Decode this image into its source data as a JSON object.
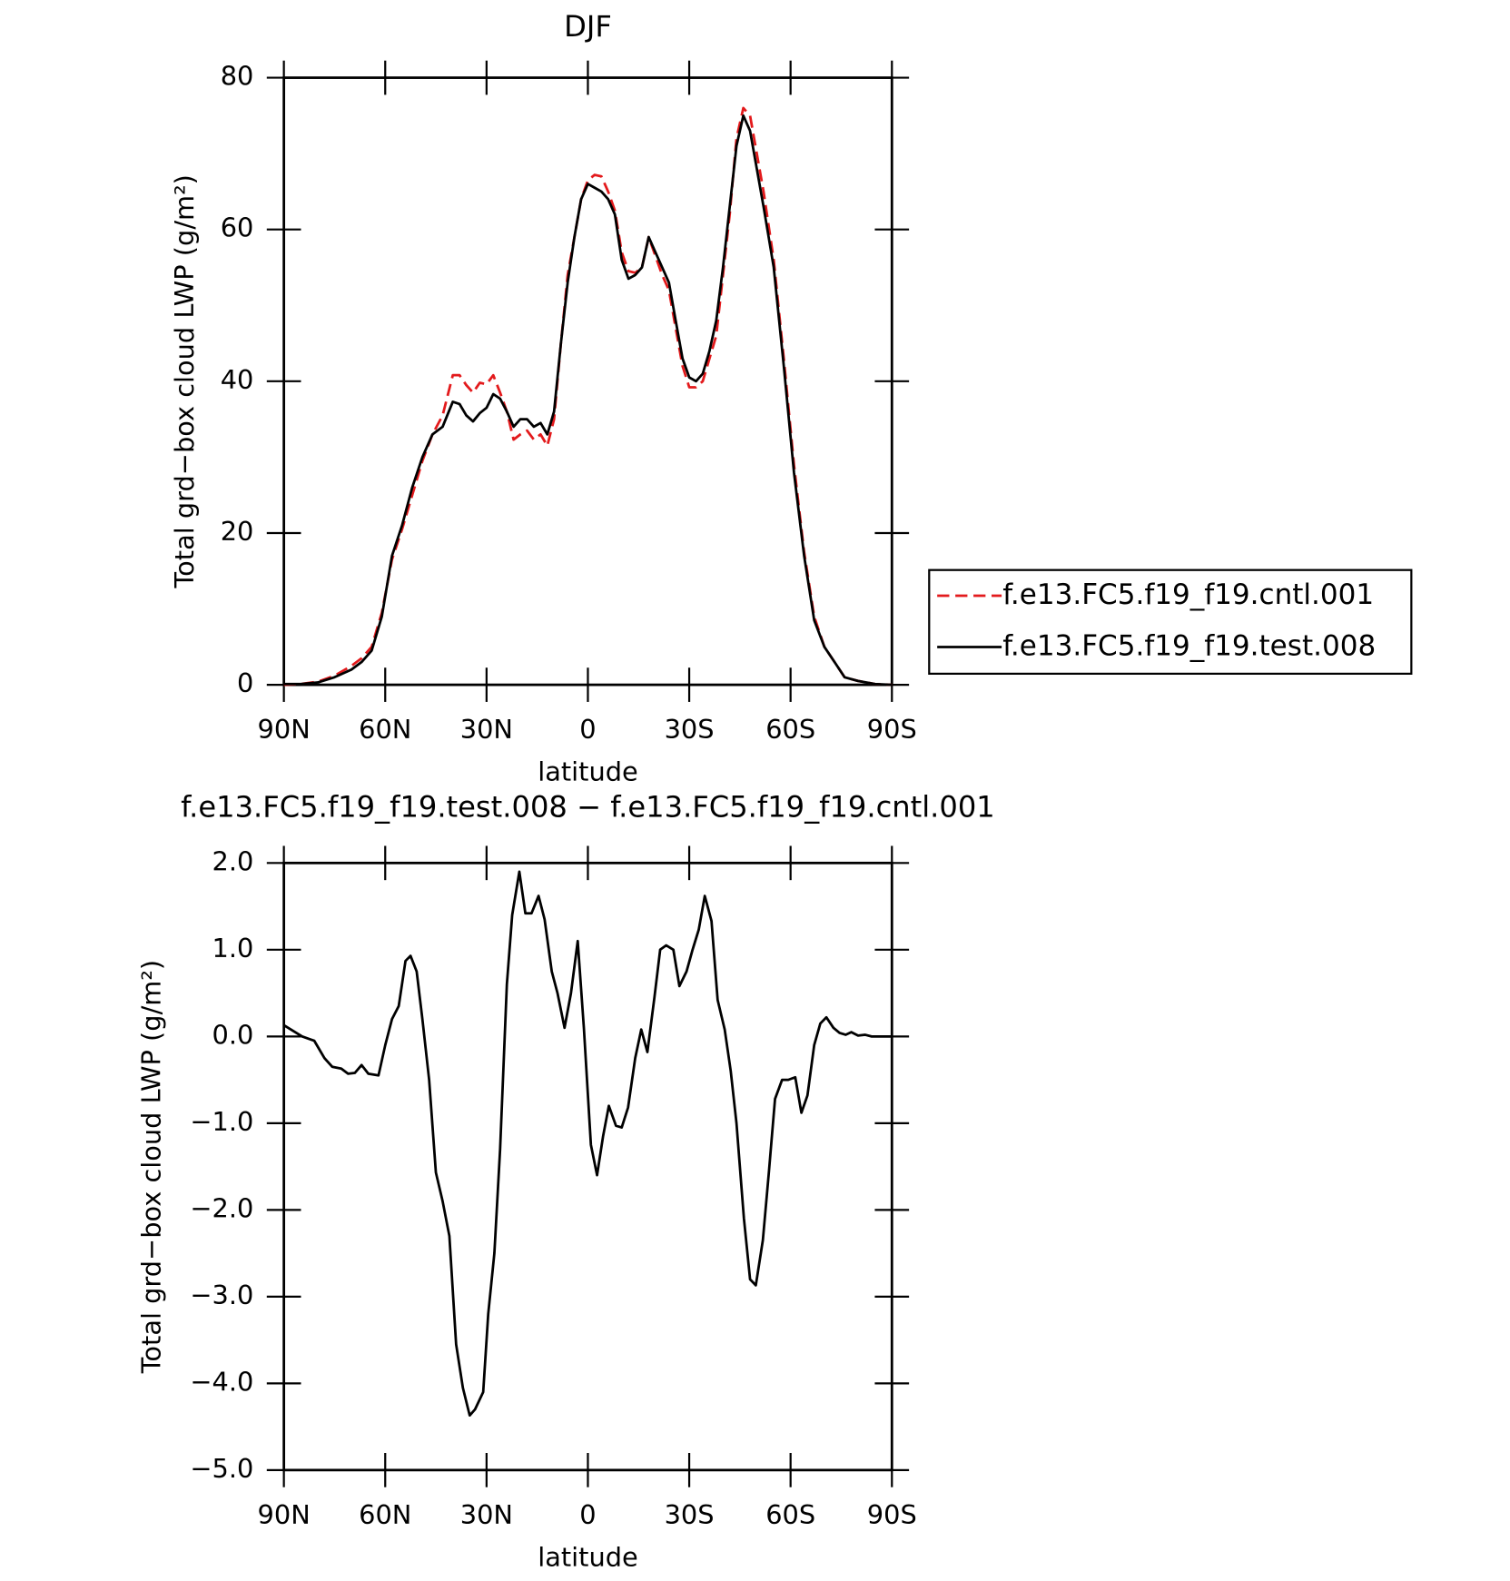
{
  "chart_data": [
    {
      "type": "line",
      "title": "DJF",
      "xlabel": "latitude",
      "ylabel": "Total grd−box cloud LWP (g/m²)",
      "legend": "right",
      "x": [
        90,
        85,
        80,
        75,
        70,
        67,
        64,
        61,
        58,
        55,
        52,
        49,
        46,
        43,
        40,
        38,
        36,
        34,
        32,
        30,
        28,
        26,
        24,
        22,
        20,
        18,
        16,
        14,
        12,
        10,
        8,
        6,
        4,
        2,
        0,
        -2,
        -4,
        -6,
        -8,
        -10,
        -12,
        -14,
        -16,
        -18,
        -20,
        -22,
        -24,
        -26,
        -28,
        -30,
        -32,
        -34,
        -36,
        -38,
        -40,
        -42,
        -44,
        -46,
        -48,
        -50,
        -52,
        -55,
        -58,
        -61,
        -64,
        -67,
        -70,
        -73,
        -76,
        -80,
        -85,
        -90
      ],
      "series": [
        {
          "name": "f.e13.FC5.f19_f19.cntl.001",
          "color": "#e31a1c",
          "dashed": true,
          "values": [
            0,
            0.1,
            0.4,
            1.2,
            2.5,
            3.5,
            5,
            9.5,
            16.5,
            20.5,
            25,
            29.5,
            33,
            35.5,
            40.8,
            40.8,
            39.5,
            38.5,
            39.8,
            39.6,
            40.8,
            38.5,
            36,
            32.3,
            33,
            33.5,
            32.3,
            33,
            31.5,
            35,
            45,
            54,
            59,
            64,
            66.5,
            67.2,
            67,
            65,
            62.5,
            57,
            54.5,
            54.3,
            55,
            59,
            56.5,
            54,
            52,
            47,
            42,
            39.2,
            39.2,
            40,
            43,
            46,
            54,
            62,
            72,
            76,
            75,
            70,
            65,
            56,
            43,
            29,
            17.5,
            9,
            5,
            3,
            1,
            0.5,
            0.1,
            0
          ]
        },
        {
          "name": "f.e13.FC5.f19_f19.test.008",
          "color": "#000000",
          "dashed": false,
          "values": [
            0.1,
            0.1,
            0.3,
            1,
            2,
            3,
            4.5,
            9,
            17,
            21,
            26,
            30,
            33,
            34,
            37.3,
            37,
            35.5,
            34.7,
            35.8,
            36.5,
            38.3,
            37.7,
            36,
            34,
            35,
            35,
            34,
            34.5,
            33,
            36,
            45,
            53,
            59,
            64,
            66,
            65.5,
            65,
            64,
            62,
            56,
            53.5,
            54,
            55,
            59,
            57,
            55,
            53,
            48,
            43,
            40.5,
            40,
            41,
            44,
            48,
            55,
            63,
            71,
            75,
            73,
            68,
            63,
            55,
            42,
            28,
            17,
            8.5,
            5,
            3,
            1,
            0.5,
            0.1,
            0
          ]
        }
      ],
      "xlim": [
        90,
        -90
      ],
      "xticks": [
        {
          "value": 90,
          "label": "90N"
        },
        {
          "value": 60,
          "label": "60N"
        },
        {
          "value": 30,
          "label": "30N"
        },
        0,
        {
          "value": -30,
          "label": "30S"
        },
        {
          "value": -60,
          "label": "60S"
        },
        {
          "value": -90,
          "label": "90S"
        }
      ],
      "ylim": [
        0,
        80
      ],
      "yticks": [
        0,
        20,
        40,
        60,
        80
      ]
    },
    {
      "type": "line",
      "title": "f.e13.FC5.f19_f19.test.008 − f.e13.FC5.f19_f19.cntl.001",
      "xlabel": "latitude",
      "ylabel": "Total grd−box cloud LWP (g/m²)",
      "x": [
        90,
        84.6,
        81,
        78,
        75.7,
        73,
        71,
        69,
        67,
        65,
        62,
        60,
        58,
        56,
        54,
        52.5,
        50.7,
        49,
        47,
        45,
        43,
        41,
        39,
        37,
        35,
        33.4,
        31,
        29.5,
        27.7,
        26,
        24,
        22.4,
        20.3,
        18.5,
        16.7,
        14.6,
        12.8,
        10.7,
        9,
        6.9,
        5,
        3,
        1.2,
        -0.9,
        -2.7,
        -4.5,
        -6.2,
        -8.3,
        -10,
        -11.9,
        -14,
        -15.8,
        -17.6,
        -19.7,
        -21.4,
        -23.2,
        -25.3,
        -27.1,
        -29.2,
        -31,
        -32.8,
        -34.6,
        -36.6,
        -38.4,
        -40.5,
        -42.3,
        -44,
        -46.2,
        -48,
        -49.7,
        -51.8,
        -53.6,
        -55.4,
        -57.5,
        -59.3,
        -61.4,
        -63.2,
        -65,
        -67,
        -68.8,
        -70.6,
        -72.7,
        -74.5,
        -76.3,
        -78,
        -80,
        -82,
        -84,
        -90
      ],
      "values": [
        0.13,
        0.0,
        -0.05,
        -0.25,
        -0.35,
        -0.37,
        -0.43,
        -0.42,
        -0.33,
        -0.43,
        -0.45,
        -0.1,
        0.2,
        0.35,
        0.87,
        0.93,
        0.75,
        0.2,
        -0.5,
        -1.57,
        -1.9,
        -2.3,
        -3.55,
        -4.05,
        -4.37,
        -4.3,
        -4.1,
        -3.2,
        -2.5,
        -1.3,
        0.6,
        1.4,
        1.9,
        1.42,
        1.42,
        1.62,
        1.35,
        0.75,
        0.5,
        0.1,
        0.5,
        1.1,
        0.1,
        -1.25,
        -1.6,
        -1.15,
        -0.8,
        -1.03,
        -1.05,
        -0.82,
        -0.25,
        0.08,
        -0.18,
        0.45,
        1.0,
        1.05,
        1.0,
        0.58,
        0.75,
        1.0,
        1.23,
        1.62,
        1.33,
        0.42,
        0.08,
        -0.4,
        -1.0,
        -2.1,
        -2.8,
        -2.87,
        -2.35,
        -1.55,
        -0.72,
        -0.5,
        -0.5,
        -0.47,
        -0.88,
        -0.68,
        -0.1,
        0.15,
        0.22,
        0.1,
        0.04,
        0.02,
        0.05,
        0.01,
        0.02,
        0.0,
        0.0
      ],
      "color": "#000000",
      "xlim": [
        90,
        -90
      ],
      "xticks": [
        {
          "value": 90,
          "label": "90N"
        },
        {
          "value": 60,
          "label": "60N"
        },
        {
          "value": 30,
          "label": "30N"
        },
        0,
        {
          "value": -30,
          "label": "30S"
        },
        {
          "value": -60,
          "label": "60S"
        },
        {
          "value": -90,
          "label": "90S"
        }
      ],
      "ylim": [
        -5,
        2
      ],
      "yticks": [
        {
          "value": 2,
          "label": "2.0"
        },
        {
          "value": 1,
          "label": "1.0"
        },
        {
          "value": 0,
          "label": "0.0"
        },
        {
          "value": -1,
          "label": "−1.0"
        },
        {
          "value": -2,
          "label": "−2.0"
        },
        {
          "value": -3,
          "label": "−3.0"
        },
        {
          "value": -4,
          "label": "−4.0"
        },
        {
          "value": -5,
          "label": "−5.0"
        }
      ]
    }
  ]
}
